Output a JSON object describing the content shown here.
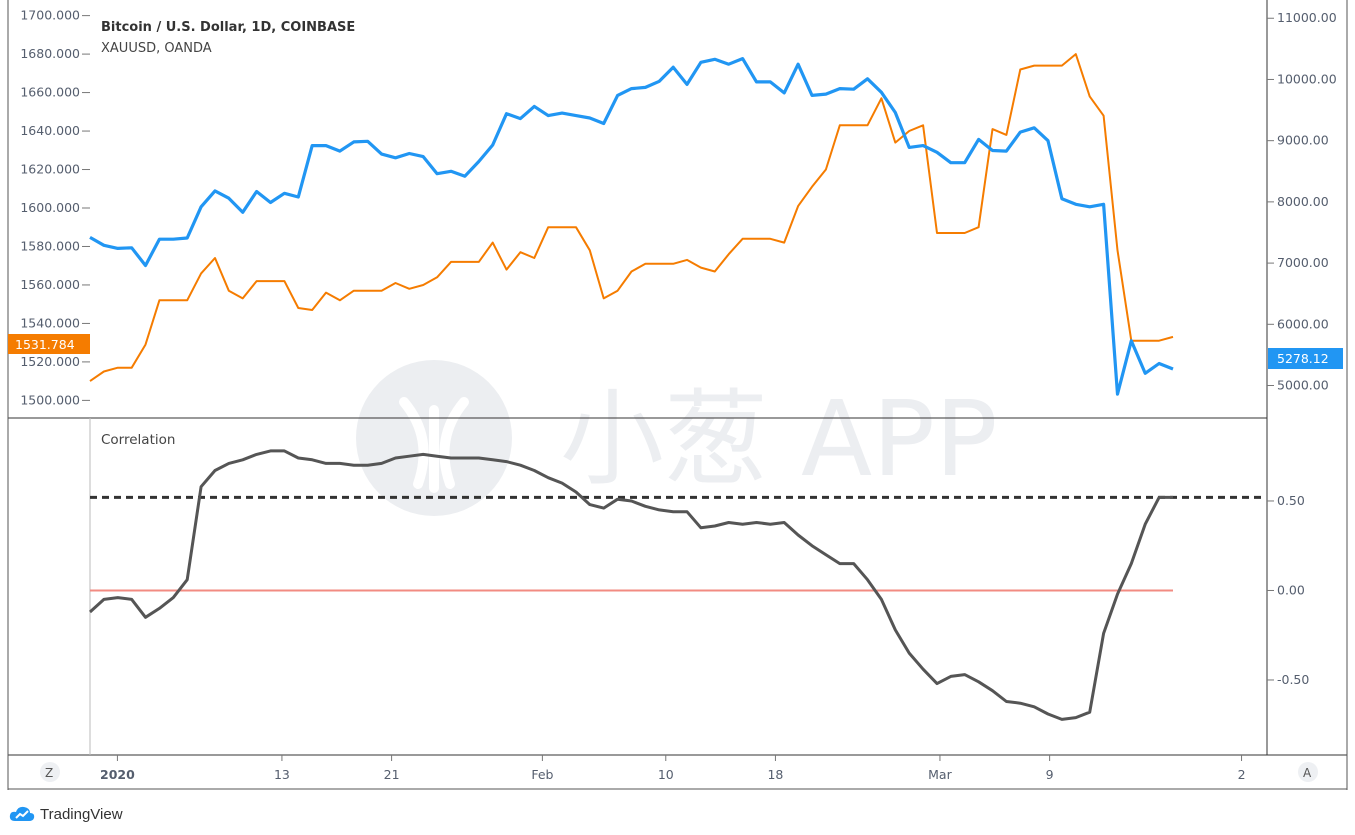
{
  "brand": {
    "name": "TradingView",
    "logo_icon": "tradingview-cloud-icon"
  },
  "watermark": {
    "text": "小葱 APP",
    "icon": "scallion-logo-icon"
  },
  "legend": {
    "main_symbol": "Bitcoin / U.S. Dollar, 1D, COINBASE",
    "compare_symbol": "XAUUSD, OANDA"
  },
  "indicator": {
    "label": "Correlation"
  },
  "buttons": {
    "left": "Z",
    "right": "A"
  },
  "colors": {
    "btc": "#2196f3",
    "xau": "#f57c00",
    "correlation": "#555555",
    "zero_line": "#f28b82",
    "dashed_level": "#333333",
    "grid_border": "#333333"
  },
  "last_values": {
    "xau": "1531.784",
    "btc": "5278.12"
  },
  "axes": {
    "left_ticks": [
      "1700.000",
      "1680.000",
      "1660.000",
      "1640.000",
      "1620.000",
      "1600.000",
      "1580.000",
      "1560.000",
      "1540.000",
      "1520.000",
      "1500.000"
    ],
    "right_ticks": [
      "11000.00",
      "10000.00",
      "9000.00",
      "8000.00",
      "7000.00",
      "6000.00",
      "5000.00"
    ],
    "correlation_ticks": [
      "0.50",
      "0.00",
      "-0.50"
    ],
    "x_ticks": [
      "2020",
      "13",
      "21",
      "Feb",
      "10",
      "18",
      "Mar",
      "9",
      "2"
    ]
  },
  "chart_data": {
    "type": "line",
    "title": "Bitcoin / U.S. Dollar, 1D, COINBASE",
    "x_start": "2019-12-30",
    "x_end": "2020-03-18",
    "series": [
      {
        "name": "Bitcoin / U.S. Dollar, 1D, COINBASE",
        "axis": "right",
        "values": [
          7420,
          7290,
          7240,
          7250,
          6960,
          7390,
          7390,
          7410,
          7920,
          8180,
          8060,
          7830,
          8170,
          7990,
          8140,
          8080,
          8920,
          8920,
          8830,
          8980,
          8990,
          8780,
          8720,
          8790,
          8740,
          8460,
          8500,
          8420,
          8660,
          8930,
          9440,
          9360,
          9560,
          9410,
          9450,
          9410,
          9370,
          9280,
          9740,
          9850,
          9870,
          9970,
          10200,
          9920,
          10280,
          10330,
          10250,
          10340,
          9960,
          9960,
          9780,
          10250,
          9740,
          9760,
          9850,
          9840,
          10010,
          9790,
          9460,
          8890,
          8920,
          8810,
          8640,
          8640,
          9020,
          8840,
          8830,
          9140,
          9210,
          9000,
          8050,
          7960,
          7920,
          7960,
          4860,
          5730,
          5200,
          5360,
          5270
        ],
        "last_value": 5278.12
      },
      {
        "name": "XAUUSD, OANDA",
        "axis": "left",
        "values": [
          1510,
          1515,
          1517,
          1517,
          1529,
          1552,
          1552,
          1552,
          1566,
          1574,
          1557,
          1553,
          1562,
          1562,
          1562,
          1548,
          1547,
          1556,
          1552,
          1557,
          1557,
          1557,
          1561,
          1558,
          1560,
          1564,
          1572,
          1572,
          1572,
          1582,
          1568,
          1577,
          1574,
          1590,
          1590,
          1590,
          1578,
          1553,
          1557,
          1567,
          1571,
          1571,
          1571,
          1573,
          1569,
          1567,
          1576,
          1584,
          1584,
          1584,
          1582,
          1601,
          1611,
          1620,
          1643,
          1643,
          1643,
          1657,
          1634,
          1640,
          1643,
          1587,
          1587,
          1587,
          1590,
          1641,
          1638,
          1672,
          1674,
          1674,
          1674,
          1680,
          1658,
          1648,
          1578,
          1531,
          1531,
          1531,
          1533
        ],
        "last_value": 1531.784
      },
      {
        "name": "Correlation",
        "pane": "indicator",
        "values": [
          -0.12,
          -0.05,
          -0.04,
          -0.05,
          -0.15,
          -0.1,
          -0.04,
          0.06,
          0.58,
          0.67,
          0.71,
          0.73,
          0.76,
          0.78,
          0.78,
          0.74,
          0.73,
          0.71,
          0.71,
          0.7,
          0.7,
          0.71,
          0.74,
          0.75,
          0.76,
          0.75,
          0.74,
          0.74,
          0.74,
          0.73,
          0.72,
          0.7,
          0.67,
          0.63,
          0.6,
          0.55,
          0.48,
          0.46,
          0.51,
          0.5,
          0.47,
          0.45,
          0.44,
          0.44,
          0.35,
          0.36,
          0.38,
          0.37,
          0.38,
          0.37,
          0.38,
          0.31,
          0.25,
          0.2,
          0.15,
          0.15,
          0.06,
          -0.05,
          -0.22,
          -0.35,
          -0.44,
          -0.52,
          -0.48,
          -0.47,
          -0.51,
          -0.56,
          -0.62,
          -0.63,
          -0.65,
          -0.69,
          -0.72,
          -0.71,
          -0.68,
          -0.24,
          -0.02,
          0.15,
          0.37,
          0.52,
          0.52
        ]
      }
    ],
    "levels": {
      "dashed": 0.52,
      "zero": 0.0
    },
    "ylim_left": [
      1495,
      1705
    ],
    "ylim_right": [
      4600,
      11200
    ],
    "ylim_correlation": [
      -0.88,
      0.93
    ],
    "grid": false,
    "legend": "top-left"
  }
}
